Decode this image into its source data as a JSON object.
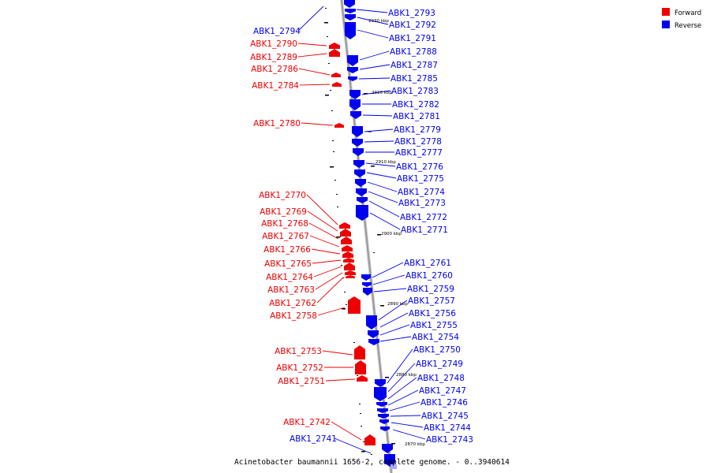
{
  "figure": {
    "caption": "Acinetobacter baumannii 1656-2, complete genome. - 0..3940614"
  },
  "legend": {
    "items": [
      {
        "label": "Forward",
        "color": "#ee0000"
      },
      {
        "label": "Reverse",
        "color": "#0000ee"
      }
    ]
  },
  "colors": {
    "forward": "#ee0000",
    "reverse": "#0000ee",
    "backbone": "#999999"
  },
  "scale_marks": [
    {
      "label": "2930 kbp"
    },
    {
      "label": "2920 kbp"
    },
    {
      "label": "2910 kbp"
    },
    {
      "label": "2900 kbp"
    },
    {
      "label": "2890 kbp"
    },
    {
      "label": "2880 kbp"
    },
    {
      "label": "2870 kbp"
    }
  ],
  "genes_forward": [
    {
      "label": "ABK1_2790"
    },
    {
      "label": "ABK1_2789"
    },
    {
      "label": "ABK1_2786"
    },
    {
      "label": "ABK1_2784"
    },
    {
      "label": "ABK1_2780"
    },
    {
      "label": "ABK1_2770"
    },
    {
      "label": "ABK1_2769"
    },
    {
      "label": "ABK1_2768"
    },
    {
      "label": "ABK1_2767"
    },
    {
      "label": "ABK1_2766"
    },
    {
      "label": "ABK1_2765"
    },
    {
      "label": "ABK1_2764"
    },
    {
      "label": "ABK1_2763"
    },
    {
      "label": "ABK1_2762"
    },
    {
      "label": "ABK1_2758"
    },
    {
      "label": "ABK1_2753"
    },
    {
      "label": "ABK1_2752"
    },
    {
      "label": "ABK1_2751"
    },
    {
      "label": "ABK1_2742"
    }
  ],
  "genes_reverse": [
    {
      "label": "ABK1_2794"
    },
    {
      "label": "ABK1_2793"
    },
    {
      "label": "ABK1_2792"
    },
    {
      "label": "ABK1_2791"
    },
    {
      "label": "ABK1_2788"
    },
    {
      "label": "ABK1_2787"
    },
    {
      "label": "ABK1_2785"
    },
    {
      "label": "ABK1_2783"
    },
    {
      "label": "ABK1_2782"
    },
    {
      "label": "ABK1_2781"
    },
    {
      "label": "ABK1_2779"
    },
    {
      "label": "ABK1_2778"
    },
    {
      "label": "ABK1_2777"
    },
    {
      "label": "ABK1_2776"
    },
    {
      "label": "ABK1_2775"
    },
    {
      "label": "ABK1_2774"
    },
    {
      "label": "ABK1_2773"
    },
    {
      "label": "ABK1_2772"
    },
    {
      "label": "ABK1_2771"
    },
    {
      "label": "ABK1_2761"
    },
    {
      "label": "ABK1_2760"
    },
    {
      "label": "ABK1_2759"
    },
    {
      "label": "ABK1_2757"
    },
    {
      "label": "ABK1_2756"
    },
    {
      "label": "ABK1_2755"
    },
    {
      "label": "ABK1_2754"
    },
    {
      "label": "ABK1_2750"
    },
    {
      "label": "ABK1_2749"
    },
    {
      "label": "ABK1_2748"
    },
    {
      "label": "ABK1_2747"
    },
    {
      "label": "ABK1_2746"
    },
    {
      "label": "ABK1_2745"
    },
    {
      "label": "ABK1_2744"
    },
    {
      "label": "ABK1_2743"
    },
    {
      "label": "ABK1_2741"
    }
  ]
}
